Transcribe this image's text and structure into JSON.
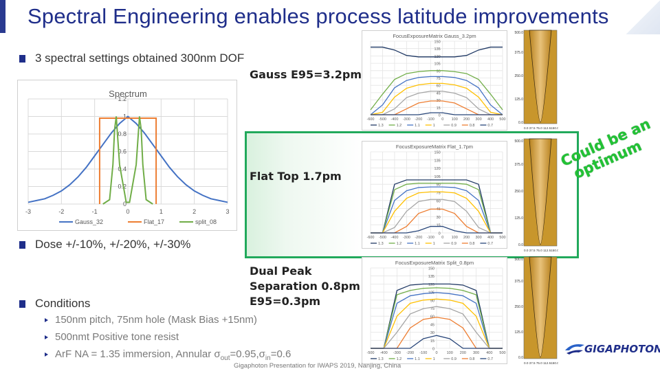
{
  "slide": {
    "title": "Spectral Engineering enables process latitude improvements",
    "bullets": [
      "3 spectral settings obtained 300nm DOF",
      "Dose +/-10%, +/-20%, +/-30%",
      "Conditions"
    ],
    "sub_bullets": [
      "150nm pitch, 75nm hole (Mask Bias +15nm)",
      "500nmt Positive tone resist"
    ],
    "arf": {
      "prefix": "ArF NA = 1.35 immersion, Annular σ",
      "out_sub": "out",
      "mid": "=0.95,σ",
      "in_sub": "in",
      "suffix": "=0.6"
    },
    "labels": {
      "gauss": "Gauss E95=3.2pm",
      "flat": "Flat Top 1.7pm",
      "dual": [
        "Dual Peak",
        "Separation 0.8pm",
        "E95=0.3pm"
      ]
    },
    "callout": [
      "Could be an",
      "optimum"
    ],
    "footer": "Gigaphoton Presentation for IWAPS 2019, Nanjing, China",
    "logo": "GIGAPHOTON",
    "colors": {
      "title": "#1f2e8a",
      "green": "#21a95b",
      "optimum": "#22c235"
    }
  },
  "profiles": {
    "top_values": [
      "500.0",
      "500.0",
      "500.0"
    ],
    "y_ticks": [
      "375.0",
      "250.0",
      "125.0",
      "0.0"
    ],
    "x_labels": [
      "0.0 37.5 75.0 112.5150.0",
      "0.0 37.5 75.0 112.5150.0",
      "0.0 37.5 75.0 112.5150.0"
    ]
  },
  "chart_data": [
    {
      "type": "line",
      "title": "Spectrum",
      "x": [
        -3,
        -2.75,
        -2.5,
        -2.25,
        -2,
        -1.75,
        -1.5,
        -1.25,
        -1,
        -0.75,
        -0.5,
        -0.25,
        0,
        0.25,
        0.5,
        0.75,
        1,
        1.25,
        1.5,
        1.75,
        2,
        2.25,
        2.5,
        2.75,
        3
      ],
      "xlim": [
        -3,
        3
      ],
      "ylim": [
        0,
        1.2
      ],
      "x_ticks": [
        "-3",
        "-2",
        "-1",
        "0",
        "1",
        "2",
        "3"
      ],
      "y_ticks": [
        "0",
        "0.2",
        "0.4",
        "0.6",
        "0.8",
        "1",
        "1.2"
      ],
      "series": [
        {
          "name": "Gauss_32",
          "color": "#4472c4",
          "values": [
            0.02,
            0.04,
            0.06,
            0.1,
            0.15,
            0.22,
            0.31,
            0.42,
            0.55,
            0.68,
            0.81,
            0.92,
            1.0,
            0.92,
            0.81,
            0.68,
            0.55,
            0.42,
            0.31,
            0.22,
            0.15,
            0.1,
            0.06,
            0.04,
            0.02
          ]
        },
        {
          "name": "Flat_17",
          "color": "#ed7d31",
          "x": [
            -0.85,
            -0.85,
            0.85,
            0.85
          ],
          "values": [
            0,
            0.98,
            0.98,
            0
          ]
        },
        {
          "name": "split_08",
          "color": "#70ad47",
          "x": [
            -0.75,
            -0.55,
            -0.45,
            -0.4,
            -0.35,
            -0.25,
            -0.05,
            0.05,
            0.25,
            0.35,
            0.4,
            0.45,
            0.55,
            0.75
          ],
          "values": [
            0,
            0.05,
            0.45,
            0.85,
            1.0,
            0.45,
            0.02,
            0.02,
            0.45,
            1.0,
            0.85,
            0.45,
            0.05,
            0
          ]
        }
      ],
      "legend": "bottom"
    },
    {
      "type": "line",
      "title": "FocusExposureMatrix Gauss_3.2pm",
      "x": [
        -600,
        -500,
        -400,
        -300,
        -200,
        -100,
        0,
        100,
        200,
        300,
        400,
        500
      ],
      "x_ticks": [
        "-600",
        "-500",
        "-400",
        "-300",
        "-200",
        "-100",
        "0",
        "100",
        "200",
        "300",
        "400",
        "500"
      ],
      "y_ticks": [
        "0",
        "15",
        "30",
        "45",
        "60",
        "75",
        "90",
        "105",
        "120",
        "135",
        "150"
      ],
      "ylim": [
        0,
        150
      ],
      "series": [
        {
          "name": "1.3",
          "color": "#1f3864",
          "values": [
            138,
            138,
            132,
            121,
            118,
            118,
            118,
            118,
            121,
            132,
            138,
            138
          ]
        },
        {
          "name": "1.2",
          "color": "#70ad47",
          "values": [
            10,
            42,
            72,
            84,
            88,
            90,
            90,
            88,
            84,
            72,
            42,
            10
          ]
        },
        {
          "name": "1.1",
          "color": "#4472c4",
          "values": [
            0,
            20,
            55,
            70,
            76,
            78,
            78,
            76,
            70,
            55,
            20,
            0
          ]
        },
        {
          "name": "1",
          "color": "#ffc000",
          "values": [
            0,
            5,
            36,
            54,
            61,
            64,
            64,
            61,
            54,
            36,
            5,
            0
          ]
        },
        {
          "name": "0.9",
          "color": "#a5a5a5",
          "values": [
            0,
            0,
            12,
            35,
            44,
            48,
            48,
            44,
            35,
            12,
            0,
            0
          ]
        },
        {
          "name": "0.8",
          "color": "#ed7d31",
          "values": [
            0,
            0,
            0,
            12,
            24,
            28,
            28,
            24,
            12,
            0,
            0,
            0
          ]
        },
        {
          "name": "0.7",
          "color": "#264478",
          "values": [
            0,
            0,
            0,
            0,
            0,
            4,
            4,
            0,
            0,
            0,
            0,
            0
          ]
        }
      ],
      "legend": "bottom"
    },
    {
      "type": "line",
      "title": "FocusExposureMatrix Flat_1.7pm",
      "x": [
        -600,
        -500,
        -400,
        -300,
        -200,
        -100,
        0,
        100,
        200,
        300,
        400,
        500
      ],
      "x_ticks": [
        "-600",
        "-500",
        "-400",
        "-300",
        "-200",
        "-100",
        "0",
        "100",
        "200",
        "300",
        "400",
        "500"
      ],
      "y_ticks": [
        "0",
        "15",
        "30",
        "45",
        "60",
        "75",
        "90",
        "105",
        "120",
        "135",
        "150"
      ],
      "ylim": [
        0,
        150
      ],
      "series": [
        {
          "name": "1.3",
          "color": "#1f3864",
          "values": [
            0,
            0,
            90,
            98,
            98,
            98,
            98,
            98,
            98,
            90,
            0,
            0
          ]
        },
        {
          "name": "1.2",
          "color": "#70ad47",
          "values": [
            0,
            0,
            80,
            90,
            92,
            92,
            92,
            92,
            90,
            80,
            0,
            0
          ]
        },
        {
          "name": "1.1",
          "color": "#4472c4",
          "values": [
            0,
            0,
            60,
            78,
            84,
            85,
            85,
            84,
            78,
            60,
            0,
            0
          ]
        },
        {
          "name": "1",
          "color": "#ffc000",
          "values": [
            0,
            0,
            40,
            64,
            74,
            76,
            76,
            74,
            64,
            40,
            0,
            0
          ]
        },
        {
          "name": "0.9",
          "color": "#a5a5a5",
          "values": [
            0,
            0,
            10,
            40,
            58,
            62,
            62,
            58,
            40,
            10,
            0,
            0
          ]
        },
        {
          "name": "0.8",
          "color": "#ed7d31",
          "values": [
            0,
            0,
            0,
            12,
            36,
            44,
            44,
            36,
            12,
            0,
            0,
            0
          ]
        },
        {
          "name": "0.7",
          "color": "#264478",
          "values": [
            0,
            0,
            0,
            0,
            4,
            12,
            12,
            4,
            0,
            0,
            0,
            0
          ]
        }
      ],
      "legend": "bottom"
    },
    {
      "type": "line",
      "title": "FocusExposureMatrix Split_0.8pm",
      "x": [
        -500,
        -400,
        -300,
        -200,
        -100,
        0,
        100,
        200,
        300,
        400,
        500
      ],
      "x_ticks": [
        "-500",
        "-400",
        "-300",
        "-200",
        "-100",
        "0",
        "100",
        "200",
        "300",
        "400",
        "500"
      ],
      "y_ticks": [
        "0",
        "15",
        "30",
        "45",
        "60",
        "75",
        "90",
        "105",
        "120",
        "135",
        "150"
      ],
      "ylim": [
        0,
        150
      ],
      "series": [
        {
          "name": "1.3",
          "color": "#1f3864",
          "values": [
            0,
            0,
            108,
            118,
            120,
            120,
            120,
            118,
            108,
            0,
            0
          ]
        },
        {
          "name": "1.2",
          "color": "#70ad47",
          "values": [
            0,
            0,
            100,
            108,
            112,
            113,
            112,
            108,
            100,
            0,
            0
          ]
        },
        {
          "name": "1.1",
          "color": "#4472c4",
          "values": [
            0,
            0,
            84,
            98,
            102,
            104,
            102,
            98,
            84,
            0,
            0
          ]
        },
        {
          "name": "1",
          "color": "#ffc000",
          "values": [
            0,
            0,
            60,
            84,
            90,
            92,
            90,
            84,
            60,
            0,
            0
          ]
        },
        {
          "name": "0.9",
          "color": "#a5a5a5",
          "values": [
            0,
            0,
            30,
            64,
            74,
            78,
            74,
            64,
            30,
            0,
            0
          ]
        },
        {
          "name": "0.8",
          "color": "#ed7d31",
          "values": [
            0,
            0,
            0,
            38,
            54,
            58,
            54,
            38,
            0,
            0,
            0
          ]
        },
        {
          "name": "0.7",
          "color": "#264478",
          "values": [
            0,
            0,
            0,
            0,
            18,
            24,
            18,
            0,
            0,
            0,
            0
          ]
        }
      ],
      "legend": "bottom"
    }
  ]
}
